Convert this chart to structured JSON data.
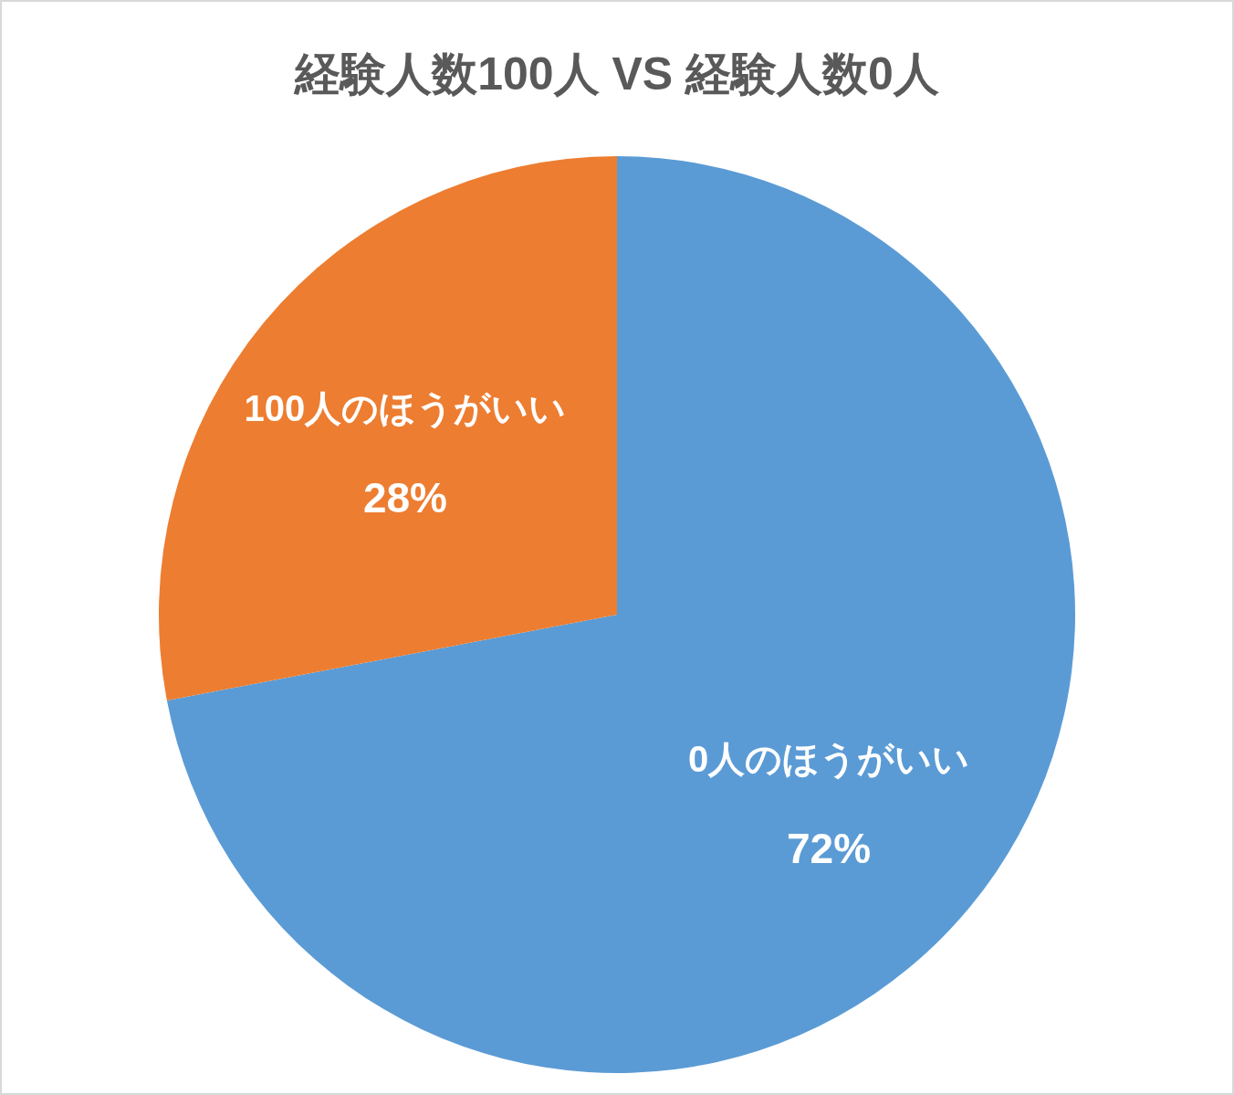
{
  "chart_data": {
    "type": "pie",
    "title": "経験人数100人 VS 経験人数0人",
    "categories": [
      "0人のほうがいい",
      "100人のほうがいい"
    ],
    "values": [
      72,
      28
    ],
    "colors": [
      "#5b9bd5",
      "#ed7d31"
    ],
    "value_labels": [
      "72%",
      "28%"
    ]
  }
}
